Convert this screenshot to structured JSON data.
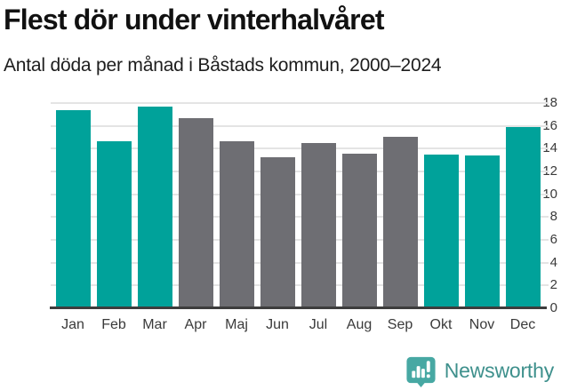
{
  "header": {
    "title": "Flest dör under vinterhalvåret",
    "subtitle": "Antal döda per månad i Båstads kommun, 2000–2024"
  },
  "chart_data": {
    "type": "bar",
    "title": "Flest dör under vinterhalvåret",
    "subtitle": "Antal döda per månad i Båstads kommun, 2000–2024",
    "categories": [
      "Jan",
      "Feb",
      "Mar",
      "Apr",
      "Maj",
      "Jun",
      "Jul",
      "Aug",
      "Sep",
      "Okt",
      "Nov",
      "Dec"
    ],
    "values": [
      17.3,
      14.6,
      17.6,
      16.6,
      14.6,
      13.2,
      14.4,
      13.5,
      15.0,
      13.4,
      13.3,
      15.8
    ],
    "highlighted": [
      true,
      true,
      true,
      false,
      false,
      false,
      false,
      false,
      false,
      true,
      true,
      true
    ],
    "xlabel": "",
    "ylabel": "",
    "ylim": [
      0,
      18
    ],
    "yticks": [
      0,
      2,
      4,
      6,
      8,
      10,
      12,
      14,
      16,
      18
    ],
    "grid": true,
    "legend": "none",
    "colors": {
      "highlight": "#00a29a",
      "default": "#6e6e73",
      "gridline": "#e4e4e4",
      "axis": "#3d3d3d"
    }
  },
  "footer": {
    "brand": "Newsworthy",
    "logo_icon": "newsworthy-speech-bubble-bar-chart",
    "brand_color": "#3e908c",
    "icon_color": "#47a8a3"
  }
}
